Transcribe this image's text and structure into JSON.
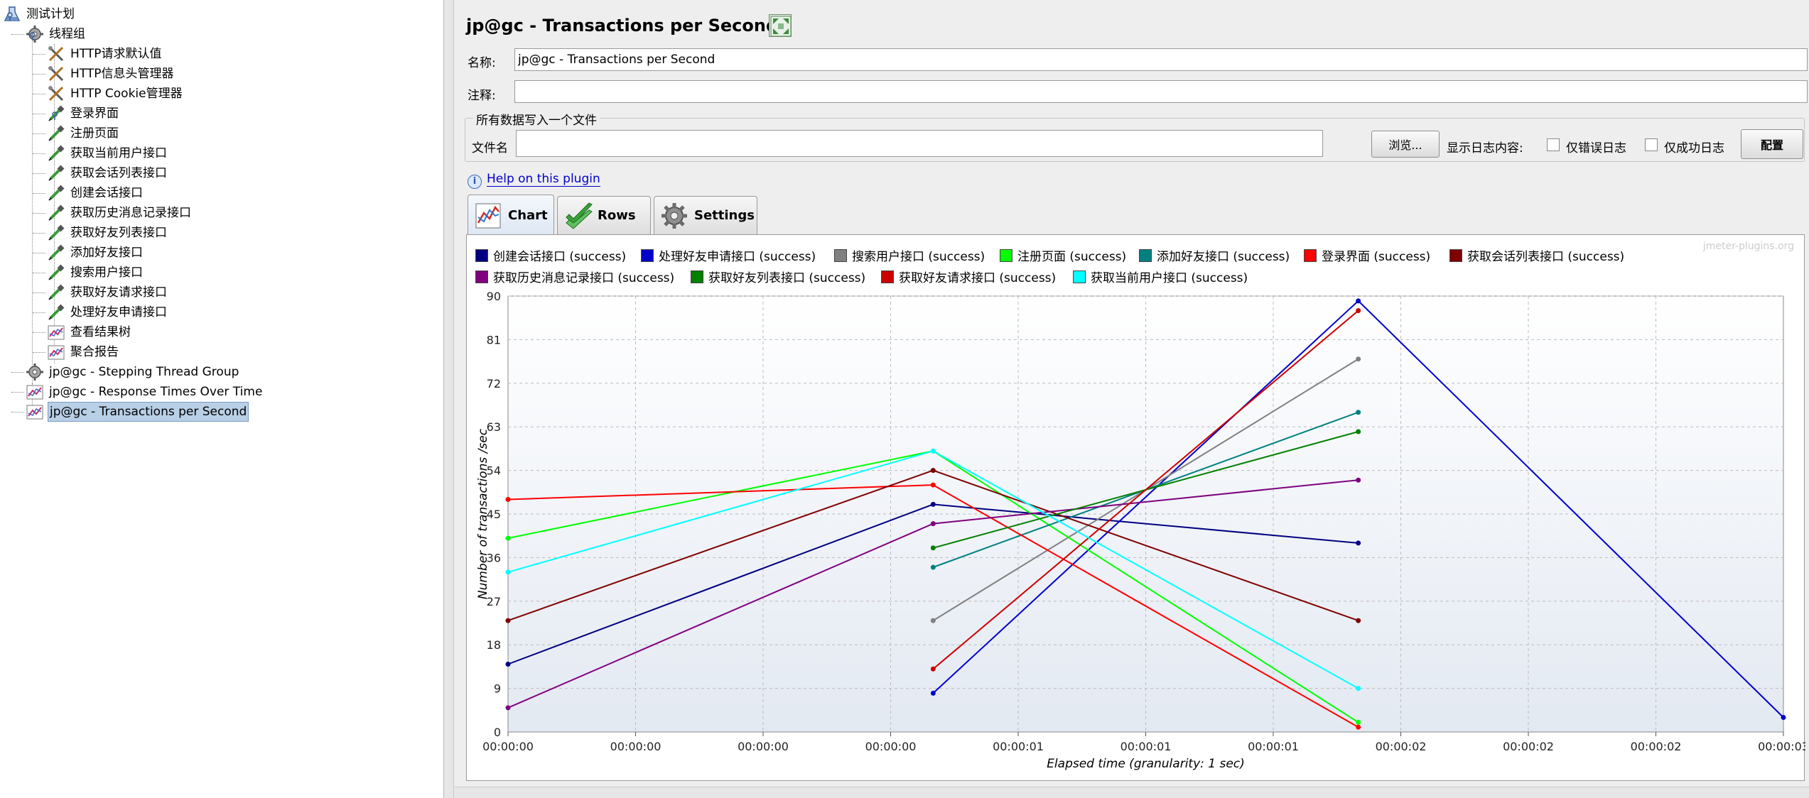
{
  "tree": {
    "items": [
      {
        "label": "测试计划",
        "icon": "test-plan-icon"
      },
      {
        "label": "线程组",
        "icon": "gear-icon"
      },
      {
        "label": "HTTP请求默认值",
        "icon": "tools-icon"
      },
      {
        "label": "HTTP信息头管理器",
        "icon": "tools-icon"
      },
      {
        "label": "HTTP Cookie管理器",
        "icon": "tools-icon"
      },
      {
        "label": "登录界面",
        "icon": "pipette-icon"
      },
      {
        "label": "注册页面",
        "icon": "pipette-icon"
      },
      {
        "label": "获取当前用户接口",
        "icon": "pipette-icon"
      },
      {
        "label": "获取会话列表接口",
        "icon": "pipette-icon"
      },
      {
        "label": "创建会话接口",
        "icon": "pipette-icon"
      },
      {
        "label": "获取历史消息记录接口",
        "icon": "pipette-icon"
      },
      {
        "label": "获取好友列表接口",
        "icon": "pipette-icon"
      },
      {
        "label": "添加好友接口",
        "icon": "pipette-icon"
      },
      {
        "label": "搜索用户接口",
        "icon": "pipette-icon"
      },
      {
        "label": "获取好友请求接口",
        "icon": "pipette-icon"
      },
      {
        "label": "处理好友申请接口",
        "icon": "pipette-icon"
      },
      {
        "label": "查看结果树",
        "icon": "graph-icon"
      },
      {
        "label": "聚合报告",
        "icon": "graph-icon"
      },
      {
        "label": "jp@gc - Stepping Thread Group",
        "icon": "gear-icon"
      },
      {
        "label": "jp@gc - Response Times Over Time",
        "icon": "graph-icon"
      },
      {
        "label": "jp@gc - Transactions per Second",
        "icon": "graph-icon"
      }
    ]
  },
  "header": {
    "title": "jp@gc - Transactions per Second"
  },
  "form": {
    "name_label": "名称:",
    "name_value": "jp@gc - Transactions per Second",
    "comment_label": "注释:",
    "comment_value": "",
    "fieldset_legend": "所有数据写入一个文件",
    "file_label": "文件名",
    "file_value": "",
    "browse_label": "浏览...",
    "log_label": "显示日志内容:",
    "errors_only_label": "仅错误日志",
    "success_only_label": "仅成功日志",
    "configure_label": "配置"
  },
  "help": {
    "link_text": "Help on this plugin"
  },
  "tabs": [
    {
      "label": "Chart",
      "icon": "chart-icon"
    },
    {
      "label": "Rows",
      "icon": "checkmark-icon"
    },
    {
      "label": "Settings",
      "icon": "gear-icon"
    }
  ],
  "watermark": "jmeter-plugins.org",
  "chart_data": {
    "type": "line",
    "xlabel": "Elapsed time (granularity: 1 sec)",
    "ylabel": "Number of transactions /sec",
    "ylim": [
      0,
      90
    ],
    "yticks": [
      0,
      9,
      18,
      27,
      36,
      45,
      54,
      63,
      72,
      81,
      90
    ],
    "xlim": [
      0,
      3
    ],
    "xtick_labels": [
      "00:00:00",
      "00:00:00",
      "00:00:00",
      "00:00:00",
      "00:00:01",
      "00:00:01",
      "00:00:01",
      "00:00:02",
      "00:00:02",
      "00:00:02",
      "00:00:03"
    ],
    "grid": true,
    "legend_placement": "top",
    "series": [
      {
        "name": "创建会话接口 (success)",
        "color": "#000080",
        "points": [
          [
            0,
            14
          ],
          [
            1,
            47
          ],
          [
            2,
            39
          ]
        ]
      },
      {
        "name": "处理好友申请接口 (success)",
        "color": "#0000cc",
        "points": [
          [
            1,
            8
          ],
          [
            2,
            89
          ],
          [
            3,
            3
          ]
        ]
      },
      {
        "name": "搜索用户接口 (success)",
        "color": "#808080",
        "points": [
          [
            1,
            23
          ],
          [
            2,
            77
          ]
        ]
      },
      {
        "name": "注册页面 (success)",
        "color": "#00ff00",
        "points": [
          [
            0,
            40
          ],
          [
            1,
            58
          ],
          [
            2,
            2
          ]
        ]
      },
      {
        "name": "添加好友接口 (success)",
        "color": "#008080",
        "points": [
          [
            1,
            34
          ],
          [
            2,
            66
          ]
        ]
      },
      {
        "name": "登录界面 (success)",
        "color": "#ff0000",
        "points": [
          [
            0,
            48
          ],
          [
            1,
            51
          ],
          [
            2,
            1
          ]
        ]
      },
      {
        "name": "获取会话列表接口 (success)",
        "color": "#800000",
        "points": [
          [
            0,
            23
          ],
          [
            1,
            54
          ],
          [
            2,
            23
          ]
        ]
      },
      {
        "name": "获取历史消息记录接口 (success)",
        "color": "#800080",
        "points": [
          [
            0,
            5
          ],
          [
            1,
            43
          ],
          [
            2,
            52
          ]
        ]
      },
      {
        "name": "获取好友列表接口 (success)",
        "color": "#008000",
        "points": [
          [
            1,
            38
          ],
          [
            2,
            62
          ]
        ]
      },
      {
        "name": "获取好友请求接口 (success)",
        "color": "#cc0000",
        "points": [
          [
            1,
            13
          ],
          [
            2,
            87
          ]
        ]
      },
      {
        "name": "获取当前用户接口 (success)",
        "color": "#00ffff",
        "points": [
          [
            0,
            33
          ],
          [
            1,
            58
          ],
          [
            2,
            9
          ]
        ]
      }
    ]
  }
}
